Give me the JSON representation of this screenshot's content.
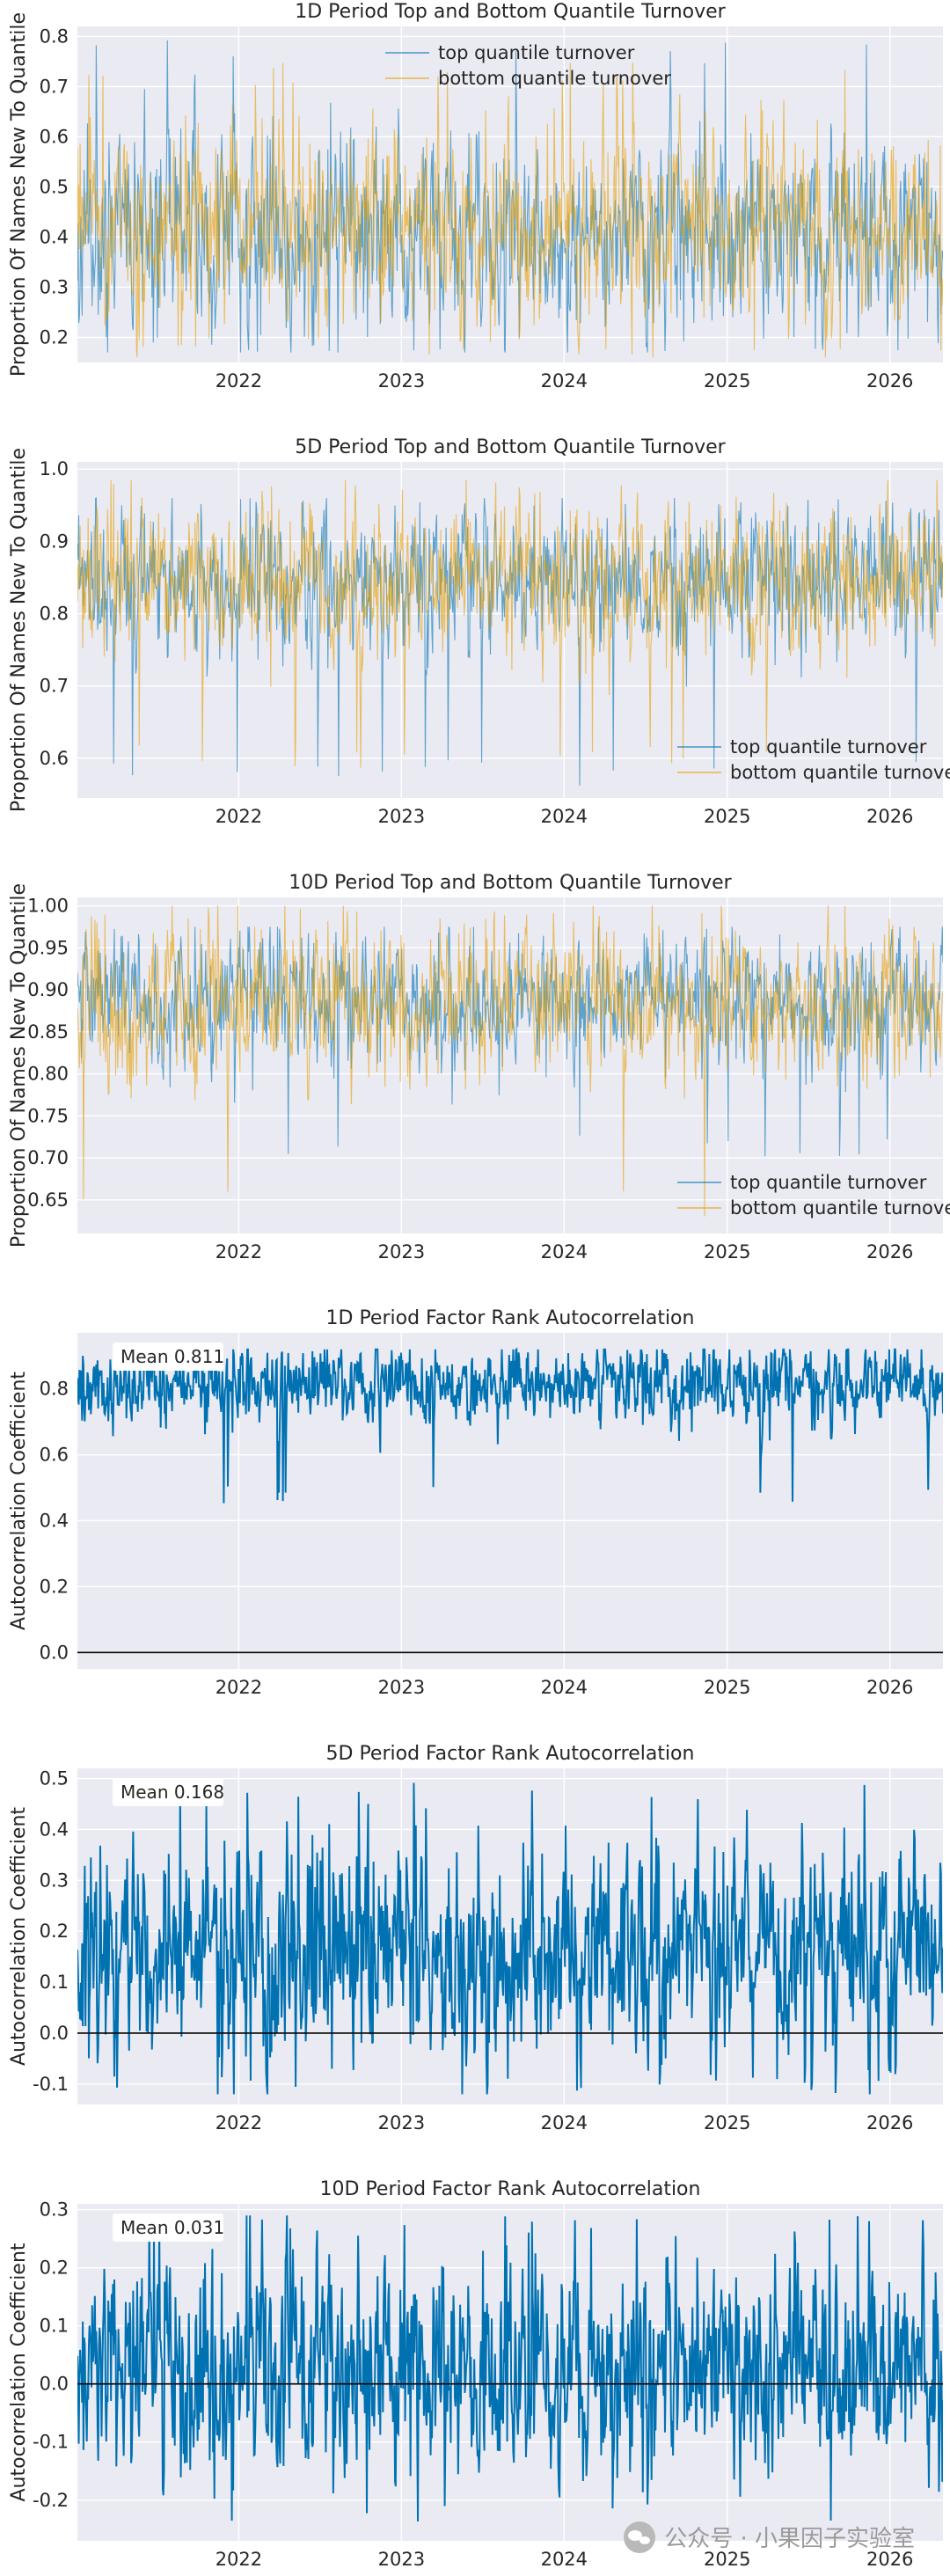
{
  "colors": {
    "panel_bg": "#EAEAF2",
    "grid": "#FFFFFF",
    "top_series": "#0072B2",
    "bottom_series": "#E69F00",
    "autocorr_series": "#0072B2",
    "zero_line": "#000000"
  },
  "watermark": {
    "text": "公众号 · 小果因子实验室",
    "icon": "wechat-icon"
  },
  "chart_data": [
    {
      "type": "line",
      "title": "1D Period Top and Bottom Quantile Turnover",
      "xlabel": "",
      "ylabel": "Proportion Of Names New To Quantile",
      "xlim": [
        "2021-01-04",
        "2026-04-30"
      ],
      "x_ticks": [
        "2022",
        "2023",
        "2024",
        "2025",
        "2026"
      ],
      "ylim": [
        0.15,
        0.82
      ],
      "y_ticks": [
        0.2,
        0.3,
        0.4,
        0.5,
        0.6,
        0.7,
        0.8
      ],
      "y_tick_labels": [
        "0.2",
        "0.3",
        "0.4",
        "0.5",
        "0.6",
        "0.7",
        "0.8"
      ],
      "legend": {
        "placement": "top-center",
        "entries": [
          "top quantile turnover",
          "bottom quantile turnover"
        ]
      },
      "series": [
        {
          "name": "top quantile turnover",
          "color": "#0072B2",
          "mean": 0.41,
          "std": 0.085,
          "min": 0.17,
          "max": 0.8,
          "seed": 11
        },
        {
          "name": "bottom quantile turnover",
          "color": "#E69F00",
          "mean": 0.41,
          "std": 0.085,
          "min": 0.16,
          "max": 0.75,
          "seed": 23
        }
      ],
      "grid": true
    },
    {
      "type": "line",
      "title": "5D Period Top and Bottom Quantile Turnover",
      "xlabel": "",
      "ylabel": "Proportion Of Names New To Quantile",
      "xlim": [
        "2021-01-04",
        "2026-04-30"
      ],
      "x_ticks": [
        "2022",
        "2023",
        "2024",
        "2025",
        "2026"
      ],
      "ylim": [
        0.545,
        1.01
      ],
      "y_ticks": [
        0.6,
        0.7,
        0.8,
        0.9,
        1.0
      ],
      "y_tick_labels": [
        "0.6",
        "0.7",
        "0.8",
        "0.9",
        "1.0"
      ],
      "legend": {
        "placement": "lower-right",
        "entries": [
          "top quantile turnover",
          "bottom quantile turnover"
        ]
      },
      "series": [
        {
          "name": "top quantile turnover",
          "color": "#0072B2",
          "mean": 0.845,
          "std": 0.045,
          "min": 0.56,
          "max": 0.96,
          "seed": 37
        },
        {
          "name": "bottom quantile turnover",
          "color": "#E69F00",
          "mean": 0.845,
          "std": 0.05,
          "min": 0.585,
          "max": 0.985,
          "seed": 41
        }
      ],
      "grid": true
    },
    {
      "type": "line",
      "title": "10D Period Top and Bottom Quantile Turnover",
      "xlabel": "",
      "ylabel": "Proportion Of Names New To Quantile",
      "xlim": [
        "2021-01-04",
        "2026-04-30"
      ],
      "x_ticks": [
        "2022",
        "2023",
        "2024",
        "2025",
        "2026"
      ],
      "ylim": [
        0.61,
        1.01
      ],
      "y_ticks": [
        0.65,
        0.7,
        0.75,
        0.8,
        0.85,
        0.9,
        0.95,
        1.0
      ],
      "y_tick_labels": [
        "0.65",
        "0.70",
        "0.75",
        "0.80",
        "0.85",
        "0.90",
        "0.95",
        "1.00"
      ],
      "legend": {
        "placement": "lower-right",
        "entries": [
          "top quantile turnover",
          "bottom quantile turnover"
        ]
      },
      "series": [
        {
          "name": "top quantile turnover",
          "color": "#0072B2",
          "mean": 0.885,
          "std": 0.035,
          "min": 0.7,
          "max": 0.975,
          "seed": 53
        },
        {
          "name": "bottom quantile turnover",
          "color": "#E69F00",
          "mean": 0.885,
          "std": 0.04,
          "min": 0.63,
          "max": 1.0,
          "seed": 67
        }
      ],
      "grid": true
    },
    {
      "type": "line",
      "title": "1D Period Factor Rank Autocorrelation",
      "xlabel": "",
      "ylabel": "Autocorrelation Coefficient",
      "xlim": [
        "2021-01-04",
        "2026-04-30"
      ],
      "x_ticks": [
        "2022",
        "2023",
        "2024",
        "2025",
        "2026"
      ],
      "ylim": [
        -0.05,
        0.97
      ],
      "y_ticks": [
        0.0,
        0.2,
        0.4,
        0.6,
        0.8
      ],
      "y_tick_labels": [
        "0.0",
        "0.2",
        "0.4",
        "0.6",
        "0.8"
      ],
      "annotation": "Mean 0.811",
      "mean": 0.811,
      "zero_line": 0.0,
      "series": [
        {
          "name": "",
          "color": "#0072B2",
          "mean": 0.811,
          "std": 0.055,
          "min": 0.45,
          "max": 0.92,
          "seed": 71
        }
      ],
      "grid": true
    },
    {
      "type": "line",
      "title": "5D Period Factor Rank Autocorrelation",
      "xlabel": "",
      "ylabel": "Autocorrelation Coefficient",
      "xlim": [
        "2021-01-04",
        "2026-04-30"
      ],
      "x_ticks": [
        "2022",
        "2023",
        "2024",
        "2025",
        "2026"
      ],
      "ylim": [
        -0.14,
        0.52
      ],
      "y_ticks": [
        -0.1,
        0.0,
        0.1,
        0.2,
        0.3,
        0.4,
        0.5
      ],
      "y_tick_labels": [
        "-0.1",
        "0.0",
        "0.1",
        "0.2",
        "0.3",
        "0.4",
        "0.5"
      ],
      "annotation": "Mean 0.168",
      "mean": 0.168,
      "zero_line": 0.0,
      "series": [
        {
          "name": "",
          "color": "#0072B2",
          "mean": 0.168,
          "std": 0.1,
          "min": -0.12,
          "max": 0.5,
          "seed": 83
        }
      ],
      "grid": true
    },
    {
      "type": "line",
      "title": "10D Period Factor Rank Autocorrelation",
      "xlabel": "",
      "ylabel": "Autocorrelation Coefficient",
      "xlim": [
        "2021-01-04",
        "2026-04-30"
      ],
      "x_ticks": [
        "2022",
        "2023",
        "2024",
        "2025",
        "2026"
      ],
      "ylim": [
        -0.27,
        0.31
      ],
      "y_ticks": [
        -0.2,
        -0.1,
        0.0,
        0.1,
        0.2,
        0.3
      ],
      "y_tick_labels": [
        "-0.2",
        "-0.1",
        "0.0",
        "0.1",
        "0.2",
        "0.3"
      ],
      "annotation": "Mean 0.031",
      "mean": 0.031,
      "zero_line": 0.0,
      "series": [
        {
          "name": "",
          "color": "#0072B2",
          "mean": 0.031,
          "std": 0.085,
          "min": -0.24,
          "max": 0.29,
          "seed": 97
        }
      ],
      "grid": true
    }
  ]
}
